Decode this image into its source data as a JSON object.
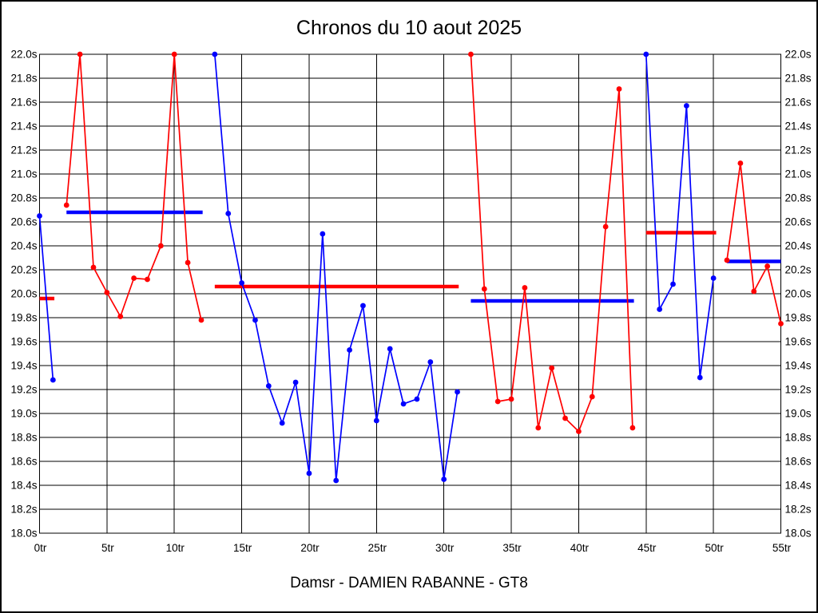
{
  "chart_data": {
    "type": "line",
    "title": "Chronos du 10 aout 2025",
    "footer": "Damsr - DAMIEN RABANNE - GT8",
    "grid": true,
    "legend": "none",
    "colors": {
      "blue_series": "#0000ff",
      "red_series": "#ff0000",
      "grid": "#000000",
      "text": "#000000",
      "background": "#ffffff"
    },
    "x_axis": {
      "min": 0,
      "max": 55,
      "tick_suffix": "tr",
      "tick_values": [
        0,
        5,
        10,
        15,
        20,
        25,
        30,
        35,
        40,
        45,
        50,
        55
      ],
      "gridline_values": [
        5,
        10,
        15,
        20,
        25,
        30,
        35,
        40,
        45,
        50
      ]
    },
    "y_axis": {
      "min": 18.0,
      "max": 22.0,
      "tick_suffix": "s",
      "decimals": 1,
      "tick_values": [
        18.0,
        18.2,
        18.4,
        18.6,
        18.8,
        19.0,
        19.2,
        19.4,
        19.6,
        19.8,
        20.0,
        20.2,
        20.4,
        20.6,
        20.8,
        21.0,
        21.2,
        21.4,
        21.6,
        21.8,
        22.0
      ],
      "labels_on_both_sides": true
    },
    "series": [
      {
        "name": "stint-1-blue",
        "color": "#0000ff",
        "points": [
          [
            0,
            20.65
          ],
          [
            1,
            19.28
          ]
        ]
      },
      {
        "name": "stint-2-red",
        "color": "#ff0000",
        "points": [
          [
            2,
            20.74
          ],
          [
            3,
            22.0
          ],
          [
            4,
            20.22
          ],
          [
            5,
            20.01
          ],
          [
            6,
            19.81
          ],
          [
            7,
            20.13
          ],
          [
            8,
            20.12
          ],
          [
            9,
            20.4
          ],
          [
            10,
            22.0
          ],
          [
            11,
            20.26
          ],
          [
            12,
            19.78
          ]
        ]
      },
      {
        "name": "stint-3-blue",
        "color": "#0000ff",
        "points": [
          [
            13,
            22.0
          ],
          [
            14,
            20.67
          ],
          [
            15,
            20.09
          ],
          [
            16,
            19.78
          ],
          [
            17,
            19.23
          ],
          [
            18,
            18.92
          ],
          [
            19,
            19.26
          ],
          [
            20,
            18.5
          ],
          [
            21,
            20.5
          ],
          [
            22,
            18.44
          ],
          [
            23,
            19.53
          ],
          [
            24,
            19.9
          ],
          [
            25,
            18.94
          ],
          [
            26,
            19.54
          ],
          [
            27,
            19.08
          ],
          [
            28,
            19.12
          ],
          [
            29,
            19.43
          ],
          [
            30,
            18.45
          ],
          [
            31,
            19.18
          ]
        ]
      },
      {
        "name": "stint-4-red",
        "color": "#ff0000",
        "points": [
          [
            32,
            22.0
          ],
          [
            33,
            20.04
          ],
          [
            34,
            19.1
          ],
          [
            35,
            19.12
          ],
          [
            36,
            20.05
          ],
          [
            37,
            18.88
          ],
          [
            38,
            19.38
          ],
          [
            39,
            18.96
          ],
          [
            40,
            18.85
          ],
          [
            41,
            19.14
          ],
          [
            42,
            20.56
          ],
          [
            43,
            21.71
          ],
          [
            44,
            18.88
          ]
        ]
      },
      {
        "name": "stint-5-blue",
        "color": "#0000ff",
        "points": [
          [
            45,
            22.0
          ],
          [
            46,
            19.87
          ],
          [
            47,
            20.08
          ],
          [
            48,
            21.57
          ],
          [
            49,
            19.3
          ],
          [
            50,
            20.13
          ]
        ]
      },
      {
        "name": "stint-6-red",
        "color": "#ff0000",
        "points": [
          [
            51,
            20.28
          ],
          [
            52,
            21.09
          ],
          [
            53,
            20.02
          ],
          [
            54,
            20.23
          ],
          [
            55,
            19.75
          ]
        ]
      }
    ],
    "average_lines": [
      {
        "color": "#ff0000",
        "x_start": 0,
        "x_end": 1.1,
        "y": 19.96
      },
      {
        "color": "#0000ff",
        "x_start": 2,
        "x_end": 12.1,
        "y": 20.68
      },
      {
        "color": "#ff0000",
        "x_start": 13,
        "x_end": 31.1,
        "y": 20.06
      },
      {
        "color": "#0000ff",
        "x_start": 32,
        "x_end": 44.1,
        "y": 19.94
      },
      {
        "color": "#ff0000",
        "x_start": 45,
        "x_end": 50.2,
        "y": 20.51
      },
      {
        "color": "#0000ff",
        "x_start": 51,
        "x_end": 55,
        "y": 20.27
      }
    ]
  }
}
